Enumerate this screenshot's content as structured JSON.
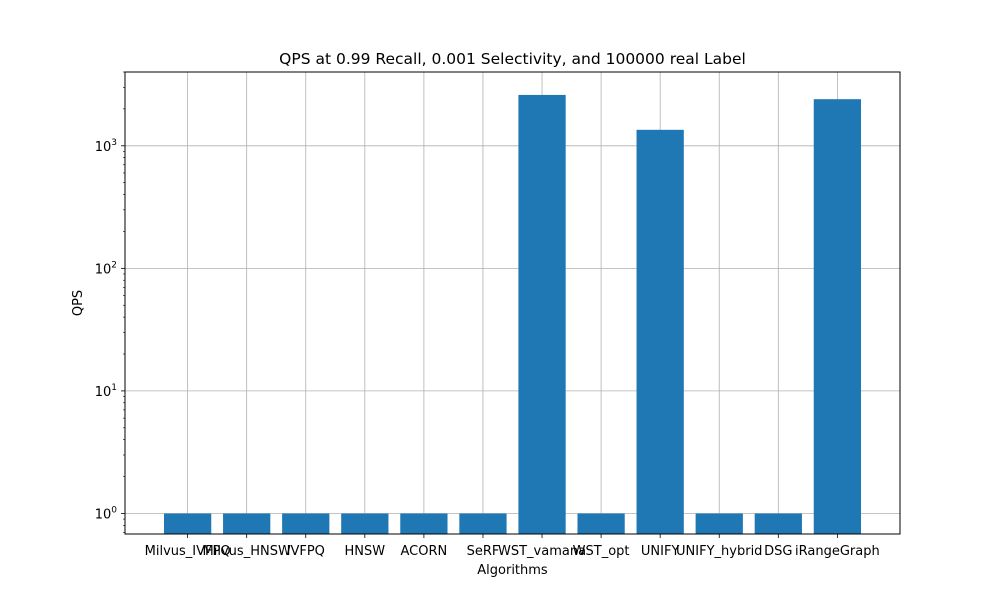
{
  "chart_data": {
    "type": "bar",
    "title": "QPS at 0.99 Recall, 0.001 Selectivity, and 100000 real Label",
    "xlabel": "Algorithms",
    "ylabel": "QPS",
    "yscale": "log",
    "ylim": [
      0.68,
      4000
    ],
    "ytick_labels": [
      {
        "value": 1,
        "base": "10",
        "exp": "0"
      },
      {
        "value": 10,
        "base": "10",
        "exp": "1"
      },
      {
        "value": 100,
        "base": "10",
        "exp": "2"
      },
      {
        "value": 1000,
        "base": "10",
        "exp": "3"
      }
    ],
    "grid": true,
    "bar_color": "#1f77b4",
    "categories": [
      "Milvus_IVFPQ",
      "Milvus_HNSW",
      "IVFPQ",
      "HNSW",
      "ACORN",
      "SeRF",
      "WST_vamana",
      "WST_opt",
      "UNIFY",
      "UNIFY_hybrid",
      "DSG",
      "iRangeGraph"
    ],
    "values": [
      1,
      1,
      1,
      1,
      1,
      1,
      2600,
      1,
      1350,
      1,
      1,
      2400
    ]
  }
}
